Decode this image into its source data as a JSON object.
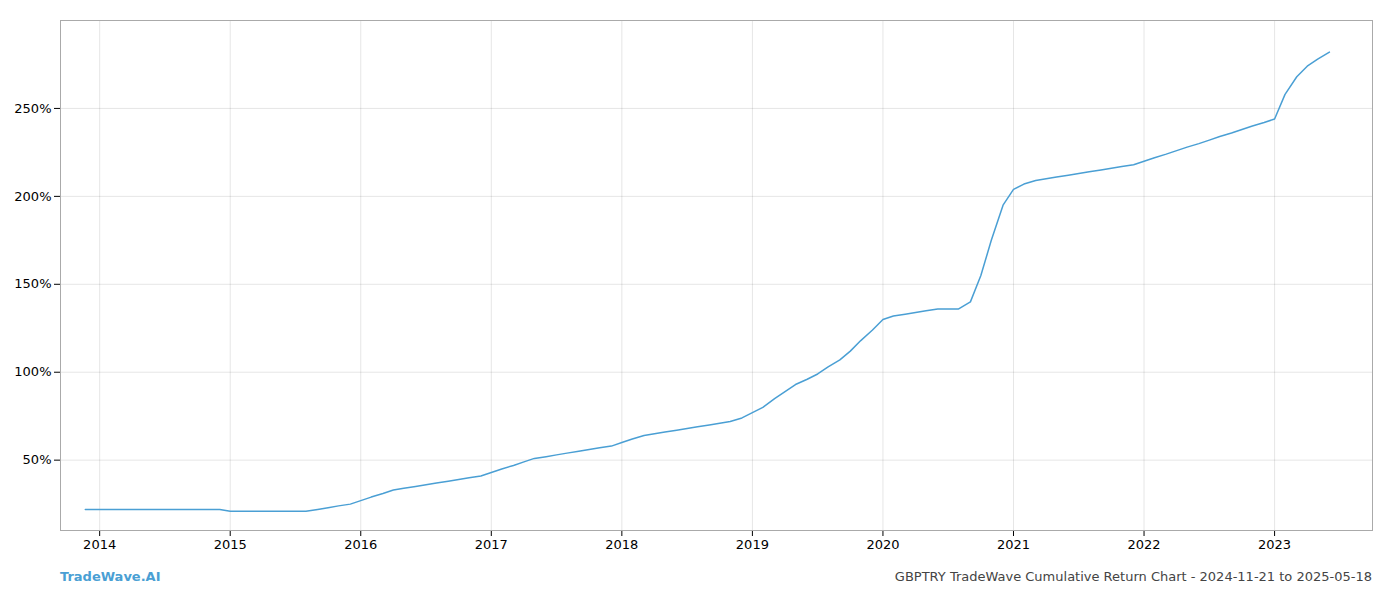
{
  "chart_data": {
    "type": "line",
    "title": "GBPTRY TradeWave Cumulative Return Chart - 2024-11-21 to 2025-05-18",
    "annotations": [
      "TradeWave.AI"
    ],
    "color": "#4a9fd4",
    "grid": true,
    "xlim": [
      2013.7,
      2023.75
    ],
    "xticks": [
      2014,
      2015,
      2016,
      2017,
      2018,
      2019,
      2020,
      2021,
      2022,
      2023
    ],
    "ylim": [
      10,
      300
    ],
    "yticks": [
      {
        "value": 50,
        "label": "50%"
      },
      {
        "value": 100,
        "label": "100%"
      },
      {
        "value": 150,
        "label": "150%"
      },
      {
        "value": 200,
        "label": "200%"
      },
      {
        "value": 250,
        "label": "250%"
      }
    ],
    "x": [
      2013.89,
      2014.0,
      2014.08,
      2014.17,
      2014.25,
      2014.33,
      2014.42,
      2014.5,
      2014.58,
      2014.67,
      2014.75,
      2014.83,
      2014.92,
      2015.0,
      2015.08,
      2015.17,
      2015.25,
      2015.33,
      2015.42,
      2015.5,
      2015.58,
      2015.67,
      2015.75,
      2015.83,
      2015.92,
      2016.0,
      2016.08,
      2016.17,
      2016.25,
      2016.33,
      2016.42,
      2016.5,
      2016.58,
      2016.67,
      2016.75,
      2016.83,
      2016.92,
      2017.0,
      2017.08,
      2017.17,
      2017.25,
      2017.33,
      2017.42,
      2017.5,
      2017.58,
      2017.67,
      2017.75,
      2017.83,
      2017.92,
      2018.0,
      2018.08,
      2018.17,
      2018.25,
      2018.33,
      2018.42,
      2018.5,
      2018.58,
      2018.67,
      2018.75,
      2018.83,
      2018.92,
      2019.0,
      2019.08,
      2019.17,
      2019.25,
      2019.33,
      2019.42,
      2019.5,
      2019.58,
      2019.67,
      2019.75,
      2019.83,
      2019.92,
      2020.0,
      2020.08,
      2020.17,
      2020.25,
      2020.33,
      2020.42,
      2020.5,
      2020.58,
      2020.67,
      2020.75,
      2020.83,
      2020.92,
      2021.0,
      2021.08,
      2021.17,
      2021.25,
      2021.33,
      2021.42,
      2021.5,
      2021.58,
      2021.67,
      2021.75,
      2021.83,
      2021.92,
      2022.0,
      2022.08,
      2022.17,
      2022.25,
      2022.33,
      2022.42,
      2022.5,
      2022.58,
      2022.67,
      2022.75,
      2022.83,
      2022.92,
      2023.0,
      2023.08,
      2023.17,
      2023.25,
      2023.33,
      2023.42
    ],
    "values": [
      22,
      22,
      22,
      22,
      22,
      22,
      22,
      22,
      22,
      22,
      22,
      22,
      22,
      21,
      21,
      21,
      21,
      21,
      21,
      21,
      21,
      22,
      23,
      24,
      25,
      27,
      29,
      31,
      33,
      34,
      35,
      36,
      37,
      38,
      39,
      40,
      41,
      43,
      45,
      47,
      49,
      51,
      52,
      53,
      54,
      55,
      56,
      57,
      58,
      60,
      62,
      64,
      65,
      66,
      67,
      68,
      69,
      70,
      71,
      72,
      74,
      77,
      80,
      85,
      89,
      93,
      96,
      99,
      103,
      107,
      112,
      118,
      124,
      130,
      132,
      133,
      134,
      135,
      136,
      136,
      136,
      140,
      155,
      175,
      195,
      204,
      207,
      209,
      210,
      211,
      212,
      213,
      214,
      215,
      216,
      217,
      218,
      220,
      222,
      224,
      226,
      228,
      230,
      232,
      234,
      236,
      238,
      240,
      242,
      244,
      258,
      268,
      274,
      278,
      282
    ]
  }
}
